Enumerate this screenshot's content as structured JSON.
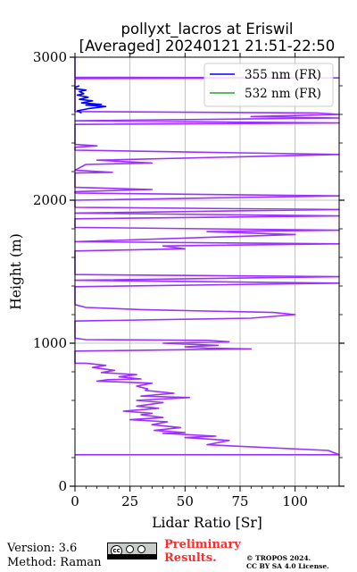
{
  "chart_data": {
    "type": "line",
    "title": "pollyxt_lacros at Eriswil",
    "subtitle": "[Averaged] 20240121 21:51-22:50",
    "xlabel": "Lidar Ratio [Sr]",
    "ylabel": "Height (m)",
    "xlim": [
      0,
      120
    ],
    "ylim": [
      0,
      3000
    ],
    "x_ticks": [
      0,
      25,
      50,
      75,
      100
    ],
    "y_ticks": [
      0,
      1000,
      2000,
      3000
    ],
    "grid": true,
    "legend_position": "top-right",
    "series": [
      {
        "name": "355 nm (FR)",
        "color": "#0000ff",
        "points": [
          [
            3,
            2610
          ],
          [
            1,
            2625
          ],
          [
            6,
            2640
          ],
          [
            14,
            2655
          ],
          [
            5,
            2665
          ],
          [
            12,
            2670
          ],
          [
            3,
            2680
          ],
          [
            8,
            2695
          ],
          [
            2,
            2705
          ],
          [
            6,
            2720
          ],
          [
            1,
            2735
          ],
          [
            4,
            2745
          ],
          [
            2,
            2760
          ],
          [
            5,
            2770
          ],
          [
            0,
            2780
          ],
          [
            0,
            2790
          ],
          [
            2,
            2800
          ]
        ]
      },
      {
        "name": "532 nm (FR)",
        "color": "#2ca02c",
        "points": []
      },
      {
        "name": "",
        "color": "#9b30ff",
        "points": [
          [
            0,
            220
          ],
          [
            120,
            220
          ],
          [
            115,
            250
          ],
          [
            60,
            290
          ],
          [
            70,
            320
          ],
          [
            50,
            340
          ],
          [
            64,
            350
          ],
          [
            40,
            370
          ],
          [
            50,
            375
          ],
          [
            36,
            390
          ],
          [
            48,
            410
          ],
          [
            35,
            430
          ],
          [
            42,
            450
          ],
          [
            25,
            465
          ],
          [
            40,
            480
          ],
          [
            30,
            500
          ],
          [
            35,
            510
          ],
          [
            22,
            525
          ],
          [
            38,
            545
          ],
          [
            28,
            560
          ],
          [
            40,
            585
          ],
          [
            28,
            600
          ],
          [
            52,
            620
          ],
          [
            30,
            630
          ],
          [
            45,
            650
          ],
          [
            32,
            670
          ],
          [
            33,
            680
          ],
          [
            28,
            700
          ],
          [
            35,
            720
          ],
          [
            10,
            735
          ],
          [
            15,
            745
          ],
          [
            30,
            750
          ],
          [
            20,
            765
          ],
          [
            28,
            780
          ],
          [
            12,
            795
          ],
          [
            18,
            810
          ],
          [
            8,
            830
          ],
          [
            14,
            845
          ],
          [
            5,
            860
          ],
          [
            0,
            860
          ],
          [
            0,
            945
          ],
          [
            80,
            960
          ],
          [
            60,
            965
          ],
          [
            50,
            975
          ],
          [
            65,
            985
          ],
          [
            40,
            1000
          ],
          [
            70,
            1010
          ],
          [
            60,
            1020
          ],
          [
            5,
            1025
          ],
          [
            0,
            1035
          ],
          [
            0,
            1155
          ],
          [
            80,
            1175
          ],
          [
            100,
            1200
          ],
          [
            90,
            1215
          ],
          [
            30,
            1235
          ],
          [
            5,
            1250
          ],
          [
            0,
            1270
          ],
          [
            0,
            1395
          ],
          [
            120,
            1420
          ],
          [
            0,
            1440
          ],
          [
            120,
            1465
          ],
          [
            0,
            1480
          ],
          [
            0,
            1645
          ],
          [
            50,
            1660
          ],
          [
            40,
            1680
          ],
          [
            120,
            1695
          ],
          [
            0,
            1710
          ],
          [
            100,
            1760
          ],
          [
            60,
            1780
          ],
          [
            120,
            1790
          ],
          [
            0,
            1810
          ],
          [
            0,
            1870
          ],
          [
            120,
            1890
          ],
          [
            0,
            1910
          ],
          [
            120,
            1935
          ],
          [
            0,
            1950
          ],
          [
            0,
            2000
          ],
          [
            120,
            2030
          ],
          [
            0,
            2050
          ],
          [
            0,
            2060
          ],
          [
            35,
            2075
          ],
          [
            0,
            2090
          ],
          [
            0,
            2190
          ],
          [
            17,
            2195
          ],
          [
            0,
            2210
          ],
          [
            5,
            2250
          ],
          [
            35,
            2260
          ],
          [
            10,
            2280
          ],
          [
            120,
            2320
          ],
          [
            0,
            2350
          ],
          [
            0,
            2370
          ],
          [
            10,
            2380
          ],
          [
            0,
            2390
          ],
          [
            0,
            2530
          ],
          [
            120,
            2540
          ],
          [
            0,
            2555
          ],
          [
            120,
            2575
          ],
          [
            80,
            2585
          ],
          [
            120,
            2600
          ],
          [
            110,
            2610
          ],
          [
            0,
            2620
          ],
          [
            0,
            2850
          ],
          [
            120,
            2855
          ],
          [
            0,
            2860
          ],
          [
            0,
            3000
          ]
        ]
      }
    ]
  },
  "footer": {
    "version": "Version: 3.6",
    "method": "Method: Raman",
    "cc_badge_text": "cc",
    "preliminary_line1": "Preliminary",
    "preliminary_line2": "Results.",
    "copyright_line1": "© TROPOS 2024.",
    "copyright_line2": "CC BY SA 4.0 License."
  }
}
